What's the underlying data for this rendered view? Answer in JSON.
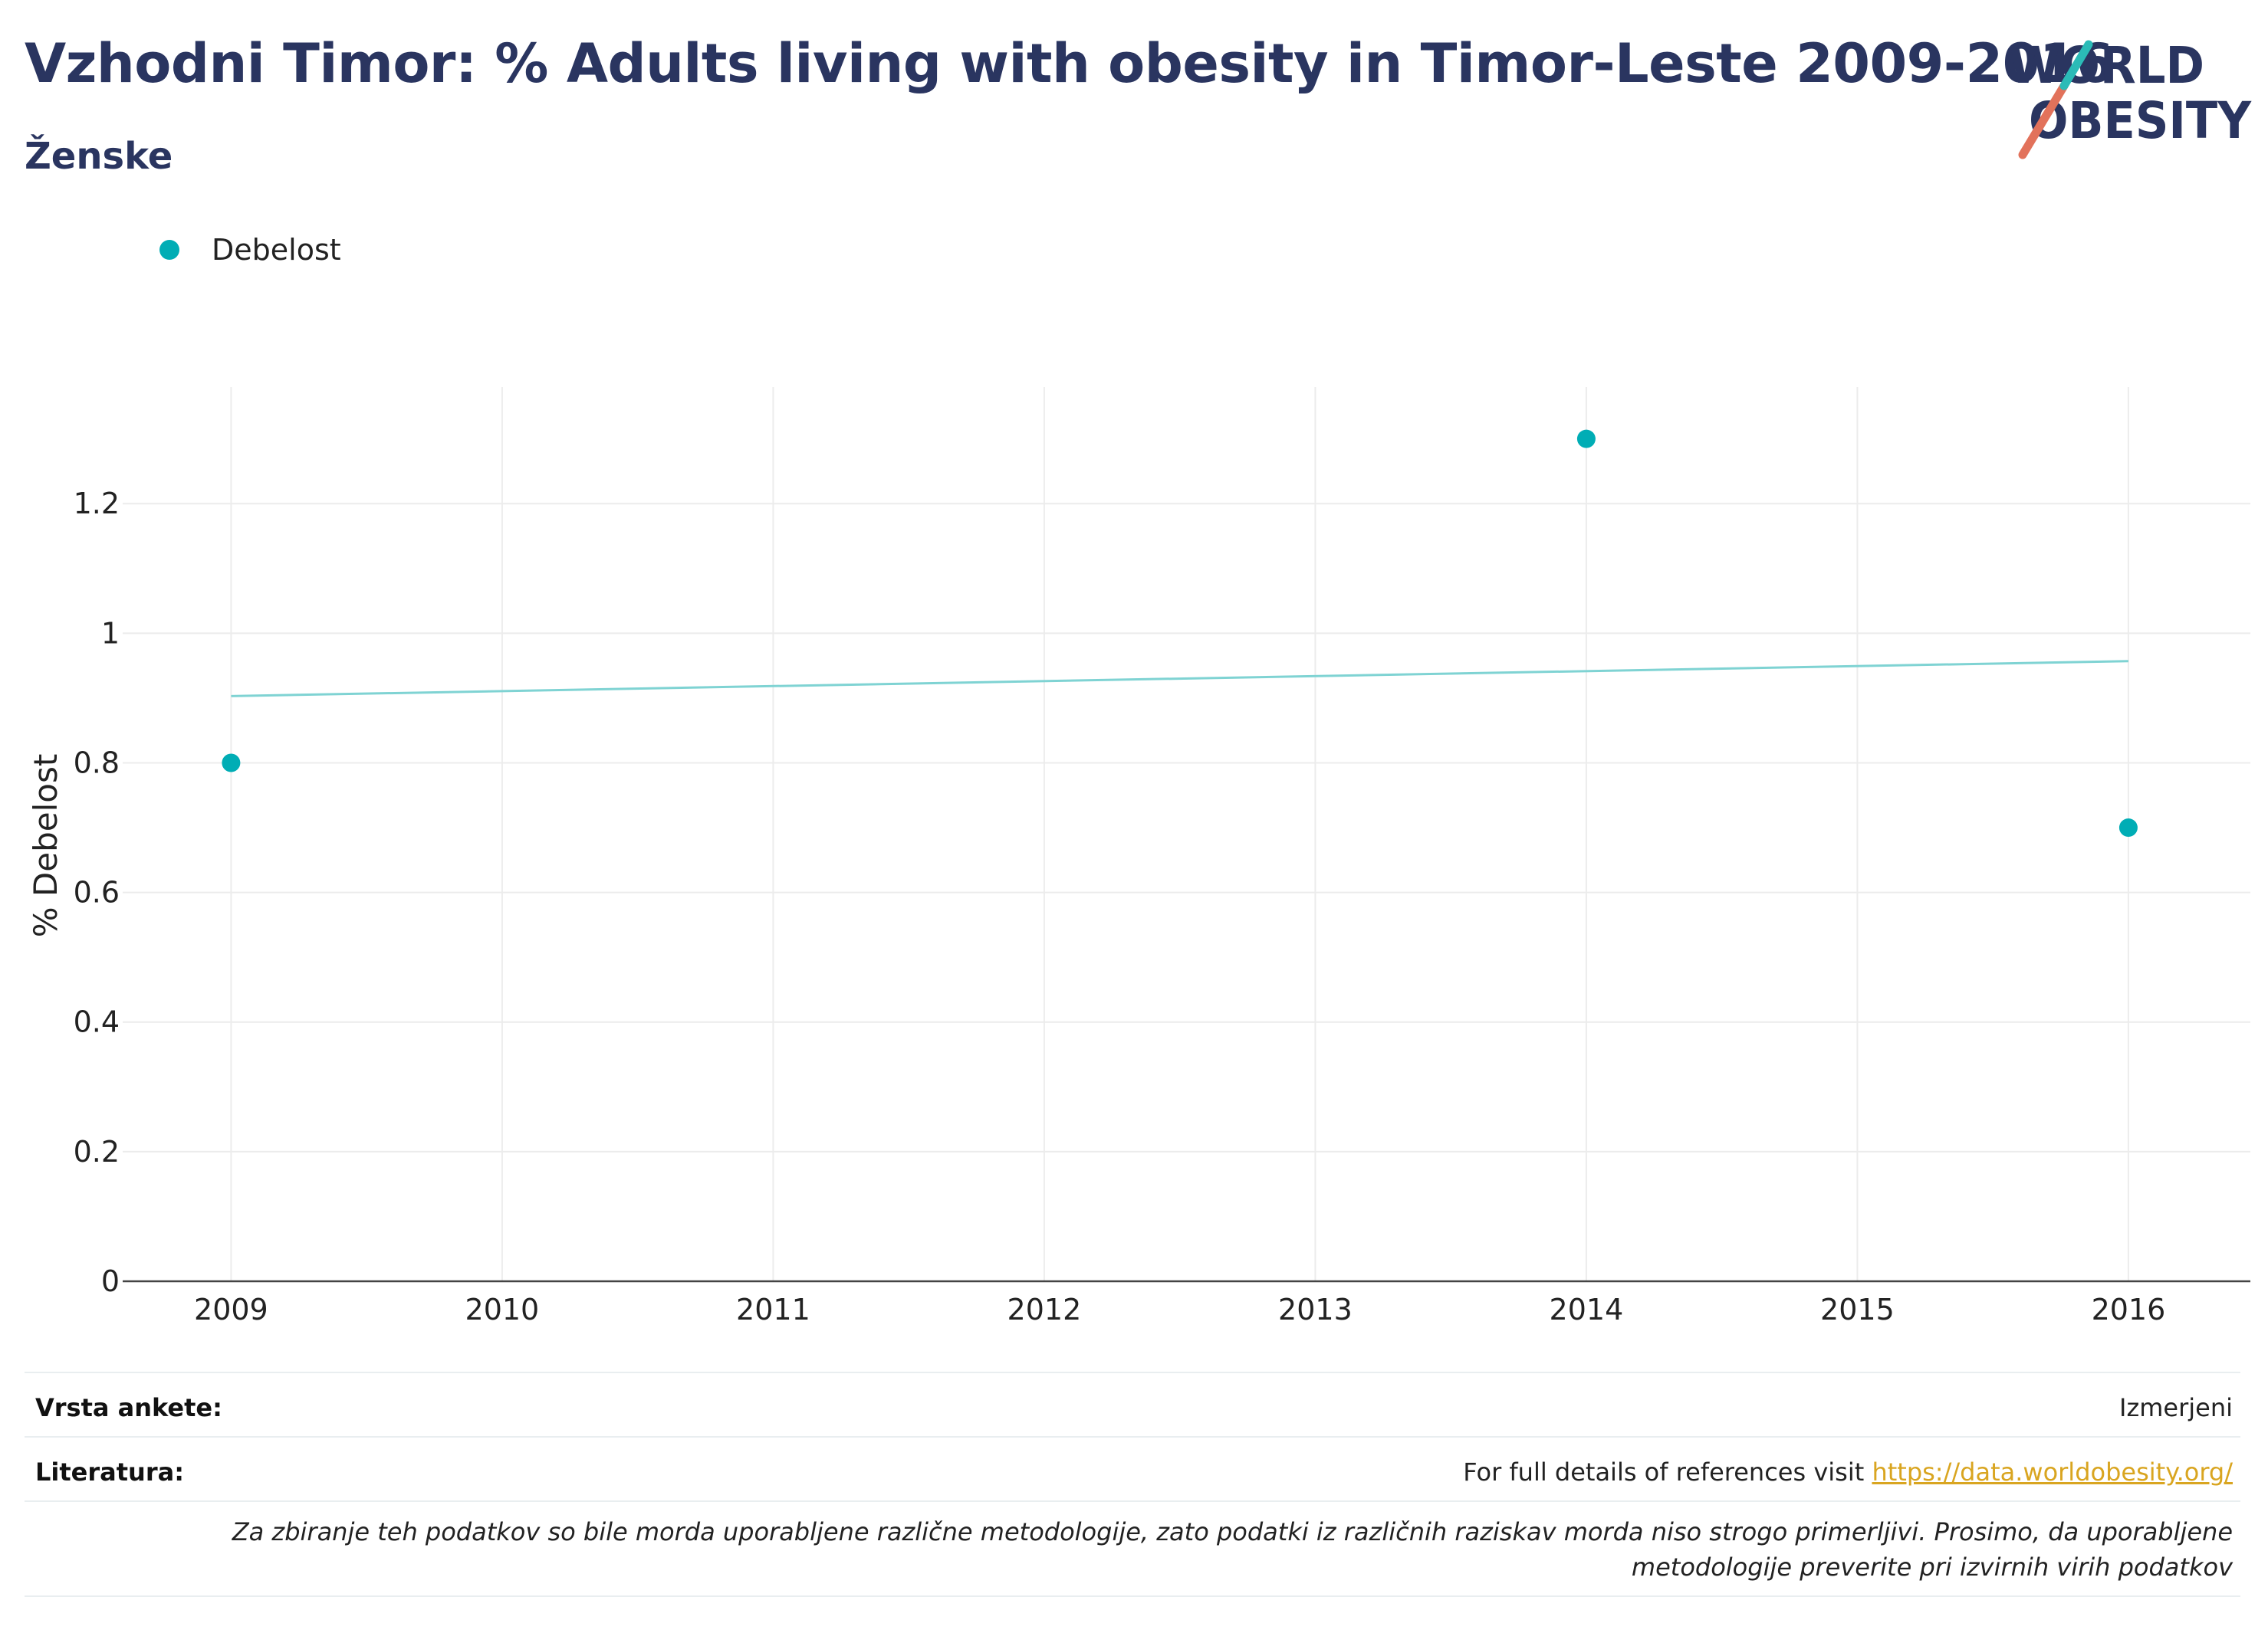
{
  "header": {
    "title": "Vzhodni Timor: % Adults living with obesity in Timor-Leste 2009-2016",
    "subtitle": "Ženske"
  },
  "logo": {
    "line1": "WORLD",
    "line2": "OBESITY",
    "colors": {
      "text": "#2a3560",
      "slash_red": "#e2725b",
      "slash_teal": "#2bbbb7"
    }
  },
  "chart_data": {
    "type": "scatter",
    "ylabel": "% Debelost",
    "xlabel": "",
    "x_ticks": [
      2009,
      2010,
      2011,
      2012,
      2013,
      2014,
      2015,
      2016
    ],
    "y_ticks": [
      0,
      0.2,
      0.4,
      0.6,
      0.8,
      1,
      1.2
    ],
    "y_tick_labels": [
      "0",
      "0.2",
      "0.4",
      "0.6",
      "0.8",
      "1",
      "1.2"
    ],
    "xlim": [
      2008.6,
      2016.45
    ],
    "ylim": [
      0,
      1.38
    ],
    "grid": true,
    "legend_position": "top-left",
    "series": [
      {
        "name": "Debelost",
        "color": "#00adb5",
        "x": [
          2009,
          2014,
          2016
        ],
        "y": [
          0.8,
          1.3,
          0.7
        ]
      }
    ],
    "trendline": {
      "color": "#7fd3d3",
      "x": [
        2009,
        2016
      ],
      "y": [
        0.903,
        0.957
      ]
    }
  },
  "footer": {
    "survey_label": "Vrsta ankete:",
    "survey_value": "Izmerjeni",
    "refs_label": "Literatura:",
    "refs_text": "For full details of references visit ",
    "refs_link": "https://data.worldobesity.org/",
    "note": "Za zbiranje teh podatkov so bile morda uporabljene različne metodologije, zato podatki iz različnih raziskav morda niso strogo primerljivi. Prosimo, da uporabljene metodologije preverite pri izvirnih virih podatkov"
  }
}
